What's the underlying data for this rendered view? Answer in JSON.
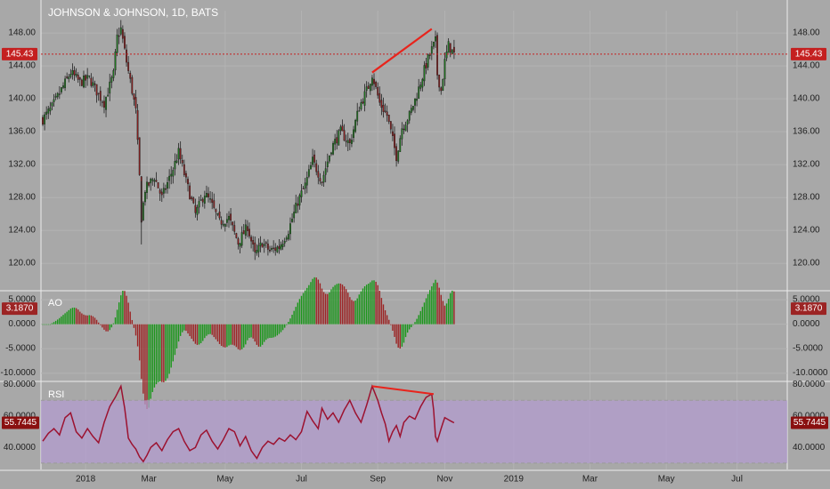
{
  "chart_data": [
    {
      "type": "candlestick",
      "title": "JOHNSON & JOHNSON, 1D, BATS",
      "yticks": [
        120,
        124,
        128,
        132,
        136,
        140,
        144,
        148
      ],
      "ytick_labels": [
        "120.00",
        "124.00",
        "128.00",
        "132.00",
        "136.00",
        "140.00",
        "144.00",
        "148.00"
      ],
      "ylim": [
        117.0,
        150.5
      ],
      "last_price": 145.43,
      "last_price_label": "145.43",
      "anchors": [
        {
          "x": 0,
          "v": 137.5
        },
        {
          "x": 5,
          "v": 139.0
        },
        {
          "x": 15,
          "v": 143.2
        },
        {
          "x": 20,
          "v": 142.0
        },
        {
          "x": 25,
          "v": 142.5
        },
        {
          "x": 30,
          "v": 140.5
        },
        {
          "x": 33,
          "v": 139.5
        },
        {
          "x": 38,
          "v": 143.0
        },
        {
          "x": 40,
          "v": 147.5
        },
        {
          "x": 42,
          "v": 148.5
        },
        {
          "x": 45,
          "v": 144.5
        },
        {
          "x": 48,
          "v": 141.0
        },
        {
          "x": 50,
          "v": 138.5
        },
        {
          "x": 52,
          "v": 130.5
        },
        {
          "x": 53,
          "v": 125.5
        },
        {
          "x": 55,
          "v": 129.0
        },
        {
          "x": 60,
          "v": 130.5
        },
        {
          "x": 64,
          "v": 128.0
        },
        {
          "x": 70,
          "v": 131.5
        },
        {
          "x": 73,
          "v": 133.5
        },
        {
          "x": 77,
          "v": 130.0
        },
        {
          "x": 82,
          "v": 126.0
        },
        {
          "x": 87,
          "v": 128.5
        },
        {
          "x": 90,
          "v": 127.5
        },
        {
          "x": 95,
          "v": 125.0
        },
        {
          "x": 100,
          "v": 125.5
        },
        {
          "x": 105,
          "v": 122.5
        },
        {
          "x": 110,
          "v": 124.5
        },
        {
          "x": 114,
          "v": 121.0
        },
        {
          "x": 118,
          "v": 122.5
        },
        {
          "x": 122,
          "v": 121.5
        },
        {
          "x": 127,
          "v": 122.0
        },
        {
          "x": 132,
          "v": 124.0
        },
        {
          "x": 137,
          "v": 127.5
        },
        {
          "x": 141,
          "v": 129.5
        },
        {
          "x": 145,
          "v": 132.5
        },
        {
          "x": 150,
          "v": 130.0
        },
        {
          "x": 155,
          "v": 134.0
        },
        {
          "x": 160,
          "v": 136.0
        },
        {
          "x": 165,
          "v": 134.5
        },
        {
          "x": 170,
          "v": 139.0
        },
        {
          "x": 175,
          "v": 141.5
        },
        {
          "x": 177,
          "v": 143.0
        },
        {
          "x": 181,
          "v": 139.5
        },
        {
          "x": 185,
          "v": 138.0
        },
        {
          "x": 188,
          "v": 135.0
        },
        {
          "x": 190,
          "v": 133.0
        },
        {
          "x": 193,
          "v": 136.5
        },
        {
          "x": 197,
          "v": 138.0
        },
        {
          "x": 201,
          "v": 140.5
        },
        {
          "x": 205,
          "v": 143.5
        },
        {
          "x": 208,
          "v": 145.5
        },
        {
          "x": 211,
          "v": 147.0
        },
        {
          "x": 212,
          "v": 143.0
        },
        {
          "x": 214,
          "v": 141.0
        },
        {
          "x": 216,
          "v": 144.5
        },
        {
          "x": 218,
          "v": 146.5
        },
        {
          "x": 221,
          "v": 145.43
        }
      ],
      "annotations": [
        {
          "type": "trendline",
          "color": "#e8241c",
          "from": {
            "x": 177,
            "v": 143.2
          },
          "to": {
            "x": 209,
            "v": 148.5
          }
        }
      ]
    },
    {
      "type": "bar",
      "label": "AO",
      "yticks": [
        5,
        0,
        -5,
        -10
      ],
      "ytick_labels": [
        "5.0000",
        "0.0000",
        "-5.0000",
        "-10.0000"
      ],
      "ylim": [
        -11.5,
        6.3
      ],
      "last_value": 3.187,
      "last_value_label": "3.1870",
      "colors": {
        "up": "#199619",
        "down": "#9c2424"
      }
    },
    {
      "type": "line",
      "label": "RSI",
      "yticks": [
        80,
        60,
        40
      ],
      "ytick_labels": [
        "80.0000",
        "60.0000",
        "40.0000"
      ],
      "ylim": [
        26,
        81.5
      ],
      "band": [
        30,
        70
      ],
      "last_value": 55.7445,
      "last_value_label": "55.7445",
      "line_color": "#9c1230",
      "anchors": [
        {
          "x": 0,
          "v": 44
        },
        {
          "x": 3,
          "v": 49
        },
        {
          "x": 6,
          "v": 52
        },
        {
          "x": 9,
          "v": 48
        },
        {
          "x": 12,
          "v": 59
        },
        {
          "x": 15,
          "v": 62
        },
        {
          "x": 18,
          "v": 50
        },
        {
          "x": 21,
          "v": 46
        },
        {
          "x": 24,
          "v": 52
        },
        {
          "x": 27,
          "v": 47
        },
        {
          "x": 30,
          "v": 43
        },
        {
          "x": 33,
          "v": 56
        },
        {
          "x": 36,
          "v": 66
        },
        {
          "x": 39,
          "v": 72
        },
        {
          "x": 42,
          "v": 79
        },
        {
          "x": 44,
          "v": 65
        },
        {
          "x": 46,
          "v": 46
        },
        {
          "x": 48,
          "v": 42
        },
        {
          "x": 50,
          "v": 39
        },
        {
          "x": 52,
          "v": 34
        },
        {
          "x": 54,
          "v": 31
        },
        {
          "x": 56,
          "v": 35
        },
        {
          "x": 58,
          "v": 40
        },
        {
          "x": 61,
          "v": 43
        },
        {
          "x": 64,
          "v": 38
        },
        {
          "x": 67,
          "v": 45
        },
        {
          "x": 70,
          "v": 50
        },
        {
          "x": 73,
          "v": 52
        },
        {
          "x": 76,
          "v": 44
        },
        {
          "x": 79,
          "v": 38
        },
        {
          "x": 82,
          "v": 40
        },
        {
          "x": 85,
          "v": 48
        },
        {
          "x": 88,
          "v": 51
        },
        {
          "x": 91,
          "v": 44
        },
        {
          "x": 94,
          "v": 39
        },
        {
          "x": 97,
          "v": 45
        },
        {
          "x": 100,
          "v": 52
        },
        {
          "x": 103,
          "v": 50
        },
        {
          "x": 106,
          "v": 41
        },
        {
          "x": 109,
          "v": 47
        },
        {
          "x": 112,
          "v": 38
        },
        {
          "x": 115,
          "v": 33
        },
        {
          "x": 118,
          "v": 40
        },
        {
          "x": 121,
          "v": 44
        },
        {
          "x": 124,
          "v": 42
        },
        {
          "x": 127,
          "v": 46
        },
        {
          "x": 130,
          "v": 44
        },
        {
          "x": 133,
          "v": 48
        },
        {
          "x": 136,
          "v": 45
        },
        {
          "x": 139,
          "v": 50
        },
        {
          "x": 142,
          "v": 63
        },
        {
          "x": 145,
          "v": 57
        },
        {
          "x": 148,
          "v": 52
        },
        {
          "x": 150,
          "v": 65
        },
        {
          "x": 153,
          "v": 58
        },
        {
          "x": 156,
          "v": 62
        },
        {
          "x": 159,
          "v": 56
        },
        {
          "x": 162,
          "v": 64
        },
        {
          "x": 165,
          "v": 70
        },
        {
          "x": 168,
          "v": 62
        },
        {
          "x": 171,
          "v": 56
        },
        {
          "x": 174,
          "v": 67
        },
        {
          "x": 177,
          "v": 79
        },
        {
          "x": 180,
          "v": 70
        },
        {
          "x": 182,
          "v": 62
        },
        {
          "x": 184,
          "v": 55
        },
        {
          "x": 186,
          "v": 44
        },
        {
          "x": 188,
          "v": 50
        },
        {
          "x": 190,
          "v": 54
        },
        {
          "x": 192,
          "v": 47
        },
        {
          "x": 194,
          "v": 56
        },
        {
          "x": 197,
          "v": 60
        },
        {
          "x": 200,
          "v": 58
        },
        {
          "x": 203,
          "v": 66
        },
        {
          "x": 206,
          "v": 72
        },
        {
          "x": 209,
          "v": 74
        },
        {
          "x": 210,
          "v": 64
        },
        {
          "x": 211,
          "v": 47
        },
        {
          "x": 212,
          "v": 44
        },
        {
          "x": 214,
          "v": 52
        },
        {
          "x": 216,
          "v": 59
        },
        {
          "x": 219,
          "v": 57
        },
        {
          "x": 221,
          "v": 55.7445
        }
      ],
      "annotations": [
        {
          "type": "trendline",
          "color": "#e8241c",
          "from": {
            "x": 177,
            "v": 79
          },
          "to": {
            "x": 210,
            "v": 74
          }
        }
      ]
    }
  ],
  "x_axis": {
    "ticks": [
      {
        "label": "2018",
        "x": 23
      },
      {
        "label": "Mar",
        "x": 57
      },
      {
        "label": "May",
        "x": 98
      },
      {
        "label": "Jul",
        "x": 139
      },
      {
        "label": "Sep",
        "x": 180
      },
      {
        "label": "Nov",
        "x": 216
      },
      {
        "label": "2019",
        "x": 253
      },
      {
        "label": "Mar",
        "x": 294
      },
      {
        "label": "May",
        "x": 335
      },
      {
        "label": "Jul",
        "x": 373
      }
    ],
    "range": [
      0,
      400
    ]
  },
  "colors": {
    "background": "#a8a8a8",
    "up": "#1f7a1f",
    "down": "#8f1f1f",
    "price_line": "#c42020",
    "rsi_band": "#b39ccf"
  }
}
